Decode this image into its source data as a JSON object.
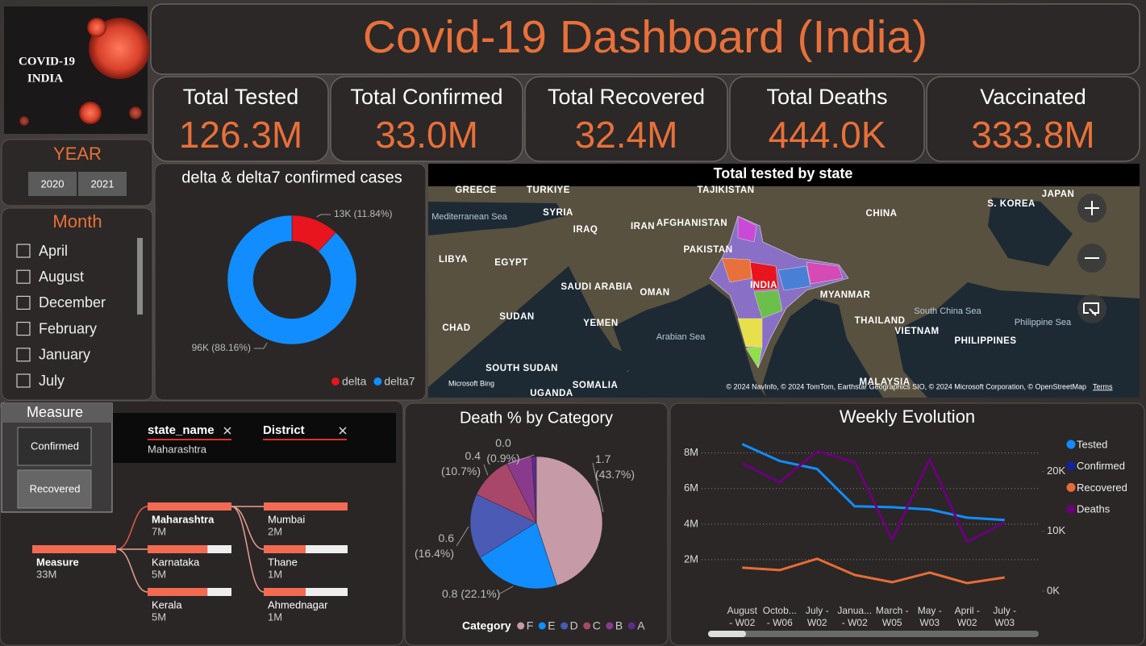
{
  "logo": {
    "line1": "COVID-19",
    "line2": "INDIA"
  },
  "title": "Covid-19 Dashboard (India)",
  "kpis": [
    {
      "label": "Total Tested",
      "value": "126.3M"
    },
    {
      "label": "Total Confirmed",
      "value": "33.0M"
    },
    {
      "label": "Total Recovered",
      "value": "32.4M"
    },
    {
      "label": "Total Deaths",
      "value": "444.0K"
    },
    {
      "label": "Vaccinated",
      "value": "333.8M"
    }
  ],
  "year_slicer": {
    "title": "YEAR",
    "options": [
      "2020",
      "2021"
    ]
  },
  "month_slicer": {
    "title": "Month",
    "options": [
      "April",
      "August",
      "December",
      "February",
      "January",
      "July"
    ]
  },
  "measure_slicer": {
    "title": "Measure",
    "options": [
      "Confirmed",
      "Recovered"
    ]
  },
  "filters": [
    {
      "field": "state_name",
      "value": "Maharashtra"
    },
    {
      "field": "District"
    }
  ],
  "decomposition_tree": {
    "root": {
      "name": "Measure",
      "value": 33000000,
      "value_label": "33M"
    },
    "states": [
      {
        "name": "Maharashtra",
        "value": 7000000,
        "value_label": "7M"
      },
      {
        "name": "Karnataka",
        "value": 5000000,
        "value_label": "5M"
      },
      {
        "name": "Kerala",
        "value": 5000000,
        "value_label": "5M"
      }
    ],
    "districts": [
      {
        "name": "Mumbai",
        "value": 2000000,
        "value_label": "2M"
      },
      {
        "name": "Thane",
        "value": 1000000,
        "value_label": "1M"
      },
      {
        "name": "Ahmednagar",
        "value": 1000000,
        "value_label": "1M"
      }
    ]
  },
  "map": {
    "title": "Total tested by state",
    "labels": [
      "GREECE",
      "TURKIYE",
      "TAJIKISTAN",
      "JAPAN",
      "S. KOREA",
      "CHINA",
      "Mediterranean Sea",
      "SYRIA",
      "IRAQ",
      "IRAN",
      "AFGHANISTAN",
      "LIBYA",
      "EGYPT",
      "PAKISTAN",
      "INDIA",
      "SAUDI ARABIA",
      "OMAN",
      "MYANMAR",
      "South China Sea",
      "CHAD",
      "SUDAN",
      "YEMEN",
      "Arabian Sea",
      "THAILAND",
      "VIETNAM",
      "Philippine Sea",
      "PHILIPPINES",
      "SOUTH SUDAN",
      "UGANDA",
      "SOMALIA",
      "MALAYSIA"
    ],
    "provider": "Microsoft Bing",
    "attribution": "© 2024 NavInfo, © 2024 TomTom, Earthstar Geographics SIO, © 2024 Microsoft Corporation, © OpenStreetMap",
    "terms": "Terms"
  },
  "chart_data": [
    {
      "type": "donut",
      "title": "delta & delta7 confirmed cases",
      "categories": [
        "delta",
        "delta7"
      ],
      "values": [
        13000,
        96000
      ],
      "value_labels": [
        "13K (11.84%)",
        "96K (88.16%)"
      ],
      "colors": [
        "#e8141e",
        "#118dff"
      ]
    },
    {
      "type": "pie",
      "title": "Death % by Category",
      "legend_title": "Category",
      "categories": [
        "F",
        "E",
        "D",
        "C",
        "B",
        "A"
      ],
      "values": [
        1.7,
        0.8,
        0.6,
        0.4,
        0.24,
        0.04
      ],
      "value_labels": [
        "1.7 (43.7%)",
        "0.8 (22.1%)",
        "0.6 (16.4%)",
        "0.4 (10.7%)",
        null,
        "0.0 (0.9%)"
      ],
      "colors": [
        "#c79aa8",
        "#118dff",
        "#4a5ab5",
        "#a8476a",
        "#8a3a8c",
        "#5e2a8e"
      ]
    },
    {
      "type": "line",
      "title": "Weekly Evolution",
      "categories": [
        "August - W02",
        "Octob... - W06",
        "July - W02",
        "Janua... - W02",
        "March - W05",
        "May - W03",
        "April - W02",
        "July - W03"
      ],
      "series": [
        {
          "name": "Tested",
          "color": "#118dff",
          "values": [
            8500000,
            7550000,
            7100000,
            5000000,
            4950000,
            4820000,
            4360000,
            4230000
          ]
        },
        {
          "name": "Confirmed",
          "color": "#12239e",
          "values": [
            null,
            null,
            null,
            null,
            null,
            null,
            null,
            null
          ]
        },
        {
          "name": "Recovered",
          "color": "#e66c37",
          "values": [
            1550000,
            1410000,
            2050000,
            1140000,
            730000,
            1270000,
            680000,
            1000000
          ]
        },
        {
          "name": "Deaths",
          "color": "#6b007b",
          "axis": "y2",
          "values": [
            21400,
            18200,
            23400,
            21600,
            8600,
            22100,
            8200,
            11500
          ]
        }
      ],
      "ylim": [
        0,
        8800000
      ],
      "yticks": [
        {
          "value": 2000000,
          "label": "2M"
        },
        {
          "value": 4000000,
          "label": "4M"
        },
        {
          "value": 6000000,
          "label": "6M"
        },
        {
          "value": 8000000,
          "label": "8M"
        }
      ],
      "y2lim": [
        -700,
        25500
      ],
      "y2ticks": [
        {
          "value": 0,
          "label": "0K"
        },
        {
          "value": 10000,
          "label": "10K"
        },
        {
          "value": 20000,
          "label": "20K"
        }
      ],
      "grid": true
    }
  ]
}
